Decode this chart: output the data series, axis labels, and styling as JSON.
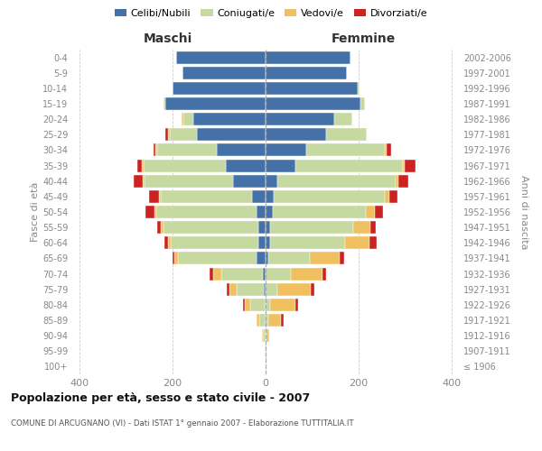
{
  "age_groups": [
    "100+",
    "95-99",
    "90-94",
    "85-89",
    "80-84",
    "75-79",
    "70-74",
    "65-69",
    "60-64",
    "55-59",
    "50-54",
    "45-49",
    "40-44",
    "35-39",
    "30-34",
    "25-29",
    "20-24",
    "15-19",
    "10-14",
    "5-9",
    "0-4"
  ],
  "birth_years": [
    "≤ 1906",
    "1907-1911",
    "1912-1916",
    "1917-1921",
    "1922-1926",
    "1927-1931",
    "1932-1936",
    "1937-1941",
    "1942-1946",
    "1947-1951",
    "1952-1956",
    "1957-1961",
    "1962-1966",
    "1967-1971",
    "1972-1976",
    "1977-1981",
    "1982-1986",
    "1987-1991",
    "1992-1996",
    "1997-2001",
    "2002-2006"
  ],
  "males_celibi": [
    0,
    0,
    0,
    2,
    2,
    3,
    5,
    20,
    15,
    15,
    20,
    30,
    70,
    85,
    105,
    148,
    155,
    215,
    200,
    178,
    193
  ],
  "males_coniugati": [
    0,
    2,
    6,
    12,
    32,
    60,
    90,
    168,
    190,
    205,
    215,
    195,
    190,
    178,
    128,
    58,
    22,
    5,
    0,
    0,
    0
  ],
  "males_vedovi": [
    0,
    0,
    1,
    5,
    10,
    15,
    18,
    8,
    5,
    5,
    4,
    4,
    4,
    4,
    4,
    4,
    4,
    0,
    0,
    0,
    0
  ],
  "males_divorziati": [
    0,
    0,
    0,
    0,
    5,
    5,
    8,
    5,
    8,
    8,
    20,
    22,
    20,
    10,
    5,
    5,
    0,
    0,
    0,
    0,
    0
  ],
  "females_nubili": [
    0,
    0,
    0,
    0,
    0,
    0,
    0,
    5,
    10,
    10,
    15,
    18,
    25,
    65,
    88,
    130,
    148,
    205,
    198,
    175,
    183
  ],
  "females_coniugate": [
    0,
    0,
    2,
    5,
    10,
    25,
    55,
    90,
    162,
    178,
    200,
    238,
    255,
    230,
    168,
    88,
    38,
    8,
    5,
    0,
    0
  ],
  "females_vedove": [
    0,
    2,
    6,
    28,
    55,
    72,
    68,
    65,
    52,
    38,
    20,
    10,
    5,
    5,
    5,
    0,
    0,
    0,
    0,
    0,
    0
  ],
  "females_divorziate": [
    0,
    0,
    0,
    5,
    5,
    8,
    8,
    10,
    15,
    12,
    18,
    18,
    22,
    22,
    10,
    0,
    0,
    0,
    0,
    0,
    0
  ],
  "color_celibi": "#4472a8",
  "color_coniugati": "#c5d9a0",
  "color_vedovi": "#f0c060",
  "color_divorziati": "#cc2222",
  "title": "Popolazione per età, sesso e stato civile - 2007",
  "subtitle": "COMUNE DI ARCUGNANO (VI) - Dati ISTAT 1° gennaio 2007 - Elaborazione TUTTITALIA.IT",
  "label_maschi": "Maschi",
  "label_femmine": "Femmine",
  "ylabel_left": "Fasce di età",
  "ylabel_right": "Anni di nascita",
  "legend_labels": [
    "Celibi/Nubili",
    "Coniugati/e",
    "Vedovi/e",
    "Divorziati/e"
  ],
  "xlim": 420,
  "bg_color": "#ffffff",
  "grid_color": "#cccccc"
}
